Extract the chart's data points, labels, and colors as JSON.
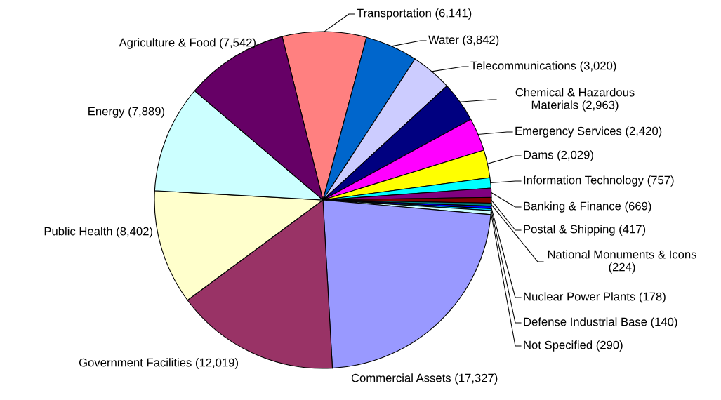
{
  "chart_data": {
    "type": "pie",
    "categories": [
      "Transportation",
      "Water",
      "Telecommunications",
      "Chemical & Hazardous Materials",
      "Emergency Services",
      "Dams",
      "Information Technology",
      "Banking & Finance",
      "Postal & Shipping",
      "National Monuments & Icons",
      "Nuclear Power Plants",
      "Defense Industrial Base",
      "Not Specified",
      "Commercial Assets",
      "Government Facilities",
      "Public Health",
      "Energy",
      "Agriculture & Food"
    ],
    "values": [
      6141,
      3842,
      3020,
      2963,
      2420,
      2029,
      757,
      669,
      417,
      224,
      178,
      140,
      290,
      17327,
      12019,
      8402,
      7889,
      7542
    ],
    "value_labels": [
      "(6,141)",
      "(3,842)",
      "(3,020)",
      "(2,963)",
      "(2,420)",
      "(2,029)",
      "(757)",
      "(669)",
      "(417)",
      "(224)",
      "(178)",
      "(140)",
      "(290)",
      "(17,327)",
      "(12,019)",
      "(8,402)",
      "(7,889)",
      "(7,542)"
    ],
    "colors": [
      "#ff8080",
      "#0066cc",
      "#ccccff",
      "#000080",
      "#ff00ff",
      "#ffff00",
      "#00ffff",
      "#800080",
      "#800000",
      "#008080",
      "#0000ff",
      "#00ccff",
      "#ccffff",
      "#9999ff",
      "#993366",
      "#ffffcc",
      "#ccffff",
      "#660066"
    ]
  }
}
